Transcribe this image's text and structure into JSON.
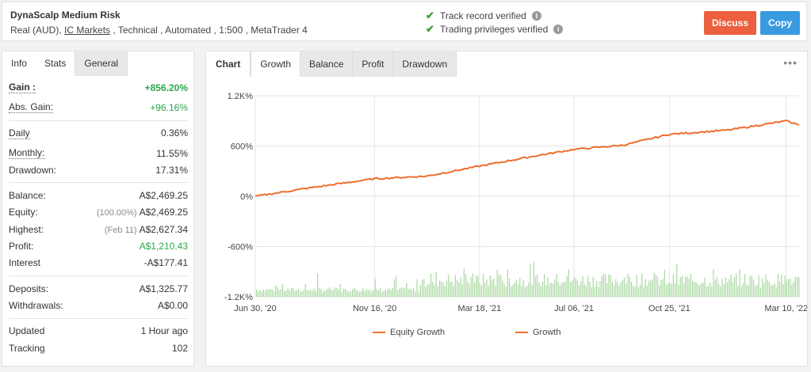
{
  "header": {
    "title": "DynaScalp Medium Risk",
    "sub_prefix": "Real (AUD), ",
    "broker": "IC Markets",
    "sub_suffix": " , Technical , Automated , 1:500 , MetaTrader 4",
    "verified_track": "Track record verified",
    "verified_trading": "Trading privileges verified",
    "discuss_label": "Discuss",
    "copy_label": "Copy"
  },
  "left_tabs": [
    "Info",
    "Stats",
    "General"
  ],
  "stats": {
    "gain_label": "Gain :",
    "gain_value": "+856.20%",
    "abs_gain_label": "Abs. Gain:",
    "abs_gain_value": "+96.16%",
    "daily_label": "Daily",
    "daily_value": "0.36%",
    "monthly_label": "Monthly:",
    "monthly_value": "11.55%",
    "drawdown_label": "Drawdown:",
    "drawdown_value": "17.31%",
    "balance_label": "Balance:",
    "balance_value": "A$2,469.25",
    "equity_label": "Equity:",
    "equity_pct": "(100.00%)",
    "equity_value": "A$2,469.25",
    "highest_label": "Highest:",
    "highest_date": "(Feb 11)",
    "highest_value": "A$2,627.34",
    "profit_label": "Profit:",
    "profit_value": "A$1,210.43",
    "interest_label": "Interest",
    "interest_value": "-A$177.41",
    "deposits_label": "Deposits:",
    "deposits_value": "A$1,325.77",
    "withdrawals_label": "Withdrawals:",
    "withdrawals_value": "A$0.00",
    "updated_label": "Updated",
    "updated_value": "1 Hour ago",
    "tracking_label": "Tracking",
    "tracking_value": "102"
  },
  "chart_tabs": [
    "Chart",
    "Growth",
    "Balance",
    "Profit",
    "Drawdown"
  ],
  "chart_menu": "•••",
  "colors": {
    "equity": "#f07030",
    "bars": "#a8d8a0",
    "green": "#2aa84a"
  },
  "chart_data": {
    "type": "line",
    "x": [
      "2020-06-30",
      "2020-09-01",
      "2020-11-16",
      "2021-01-15",
      "2021-03-18",
      "2021-05-15",
      "2021-07-06",
      "2021-09-01",
      "2021-10-25",
      "2022-01-01",
      "2022-03-10",
      "2022-03-25"
    ],
    "xticks": [
      "Jun 30, '20",
      "Nov 16, '20",
      "Mar 18, '21",
      "Jul 06, '21",
      "Oct 25, '21",
      "Mar 10, '22"
    ],
    "yticks": [
      "1.2K%",
      "600%",
      "0%",
      "-600%",
      "-1.2K%"
    ],
    "ylim": [
      -1200,
      1200
    ],
    "series": [
      {
        "name": "Equity Growth",
        "values": [
          0,
          100,
          210,
          240,
          360,
          470,
          560,
          610,
          740,
          790,
          900,
          850
        ]
      },
      {
        "name": "Growth",
        "values": [
          0,
          100,
          210,
          240,
          360,
          470,
          560,
          610,
          740,
          790,
          900,
          850
        ]
      }
    ]
  }
}
